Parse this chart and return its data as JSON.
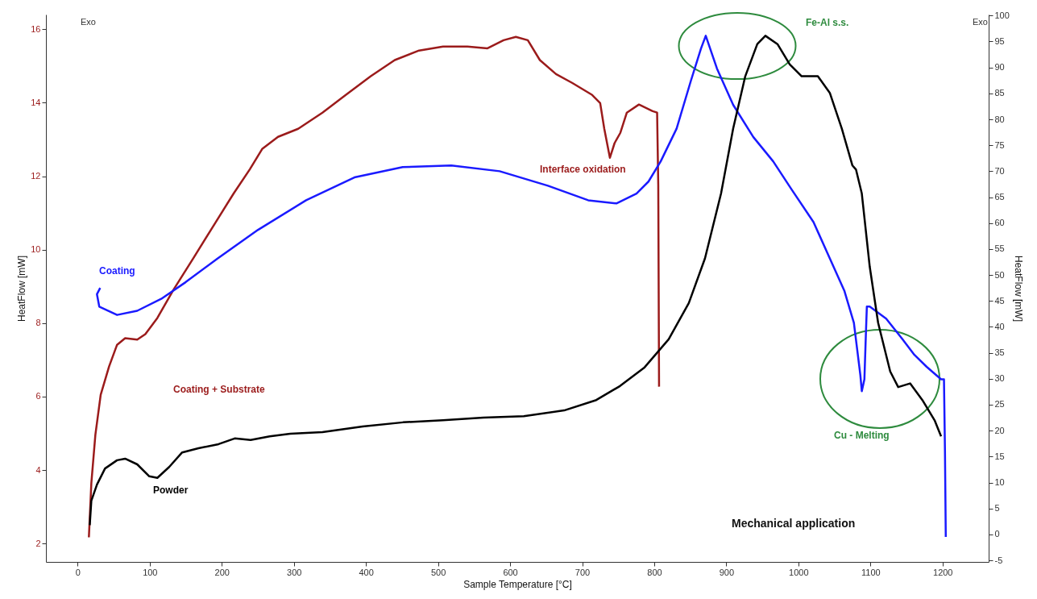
{
  "chart_data": {
    "type": "line",
    "xlabel": "Sample Temperature [°C]",
    "ylabel": "HeatFlow [mW]",
    "y2label": "HeatFlow [mW]",
    "xlim": [
      -44,
      1264
    ],
    "xticks": [
      0,
      100,
      200,
      300,
      400,
      500,
      600,
      700,
      800,
      900,
      1000,
      1100,
      1200
    ],
    "ylim": [
      1.5,
      16.4
    ],
    "yticks": [
      2,
      4,
      6,
      8,
      10,
      12,
      14,
      16
    ],
    "y2lim": [
      -5.3,
      100.2
    ],
    "y2ticks": [
      -5,
      0,
      5,
      10,
      15,
      20,
      25,
      30,
      35,
      40,
      45,
      50,
      55,
      60,
      65,
      70,
      75,
      80,
      85,
      90,
      95,
      100
    ],
    "grid": false,
    "marker": "none",
    "line_style": "solid",
    "annotations": [
      "Exo",
      "Exo",
      "Interface oxidation",
      "Fe-Al s.s.",
      "Cu - Melting",
      "Mechanical application"
    ],
    "series": [
      {
        "name": "Coating + Substrate",
        "color": "#9b1b1b",
        "x": [
          15.6,
          19,
          24.6,
          32,
          43.6,
          54.7,
          65.9,
          82.7,
          93.9,
          110.6,
          133,
          161,
          188.8,
          216.8,
          239,
          256,
          278,
          306,
          339.7,
          372,
          406.7,
          440,
          473.7,
          507,
          540.8,
          568.7,
          591,
          608,
          624.6,
          641.3,
          663.7,
          686,
          713.9,
          725,
          730.7,
          738.5,
          745,
          753,
          762,
          778.8,
          797.8,
          804,
          805.6,
          806.7
        ],
        "values": [
          2.17,
          3.64,
          4.96,
          6.05,
          6.82,
          7.41,
          7.59,
          7.55,
          7.7,
          8.14,
          8.91,
          9.78,
          10.66,
          11.54,
          12.19,
          12.74,
          13.07,
          13.29,
          13.73,
          14.21,
          14.72,
          15.16,
          15.42,
          15.53,
          15.53,
          15.48,
          15.7,
          15.79,
          15.7,
          15.16,
          14.78,
          14.54,
          14.21,
          13.99,
          13.29,
          12.5,
          12.9,
          13.18,
          13.73,
          13.95,
          13.77,
          13.73,
          11.76,
          6.27
        ]
      },
      {
        "name": "Coating",
        "color": "#1a1aff",
        "axis": "y2",
        "x": [
          31.3,
          26.8,
          30,
          54.7,
          82.7,
          116,
          149.7,
          194.4,
          250.3,
          317,
          384,
          451,
          518.4,
          585.5,
          652.5,
          708.4,
          747.5,
          775.4,
          792,
          809,
          831,
          851,
          865,
          871.5,
          887,
          909.5,
          937.4,
          965,
          990.5,
          1021,
          1043.6,
          1063.7,
          1077,
          1086,
          1088,
          1091.6,
          1093.8,
          1095,
          1099,
          1121.8,
          1144,
          1161,
          1178,
          1198,
          1202,
          1203.4,
          1204.5
        ],
        "values": [
          47.5,
          46.3,
          43.9,
          42.3,
          43.1,
          45.4,
          48.6,
          53.2,
          58.7,
          64.4,
          68.8,
          70.8,
          71.1,
          70.0,
          67.2,
          64.4,
          63.8,
          65.7,
          68.0,
          71.9,
          78.2,
          87.5,
          93.7,
          96.1,
          89.8,
          82.8,
          76.6,
          71.9,
          66.5,
          60.2,
          53.2,
          47.0,
          40.8,
          30.7,
          27.6,
          29.9,
          39.2,
          43.9,
          43.9,
          41.6,
          37.7,
          34.6,
          32.3,
          29.9,
          29.9,
          15.8,
          -0.5
        ]
      },
      {
        "name": "Powder",
        "color": "#000000",
        "axis": "y2",
        "x": [
          16.8,
          19,
          26.8,
          38,
          54.7,
          65.9,
          82.7,
          99.4,
          110.6,
          127,
          145,
          167.6,
          195.5,
          217.9,
          240,
          266.5,
          295,
          339.7,
          395.5,
          451.4,
          507,
          563,
          619,
          675,
          719.6,
          752.5,
          786.6,
          820,
          848,
          870.4,
          892.7,
          909.5,
          926.3,
          943,
          954.2,
          971,
          988,
          1004.5,
          1027,
          1043.6,
          1060.3,
          1075,
          1080,
          1088,
          1099,
          1110.6,
          1127.4,
          1138.5,
          1155,
          1172,
          1189,
          1198
        ],
        "values": [
          1.8,
          6.5,
          9.6,
          12.7,
          14.3,
          14.6,
          13.5,
          11.2,
          10.9,
          13.0,
          15.8,
          16.6,
          17.4,
          18.5,
          18.2,
          18.9,
          19.4,
          19.7,
          20.8,
          21.6,
          22.0,
          22.5,
          22.8,
          23.9,
          25.9,
          28.6,
          32.2,
          37.6,
          44.6,
          53.2,
          65.7,
          78.2,
          88.3,
          94.5,
          96.1,
          94.5,
          90.6,
          88.3,
          88.3,
          85.1,
          78.2,
          71.1,
          70.3,
          65.7,
          51.6,
          40.8,
          31.4,
          28.4,
          29.1,
          25.9,
          22.0,
          18.9
        ]
      }
    ]
  }
}
